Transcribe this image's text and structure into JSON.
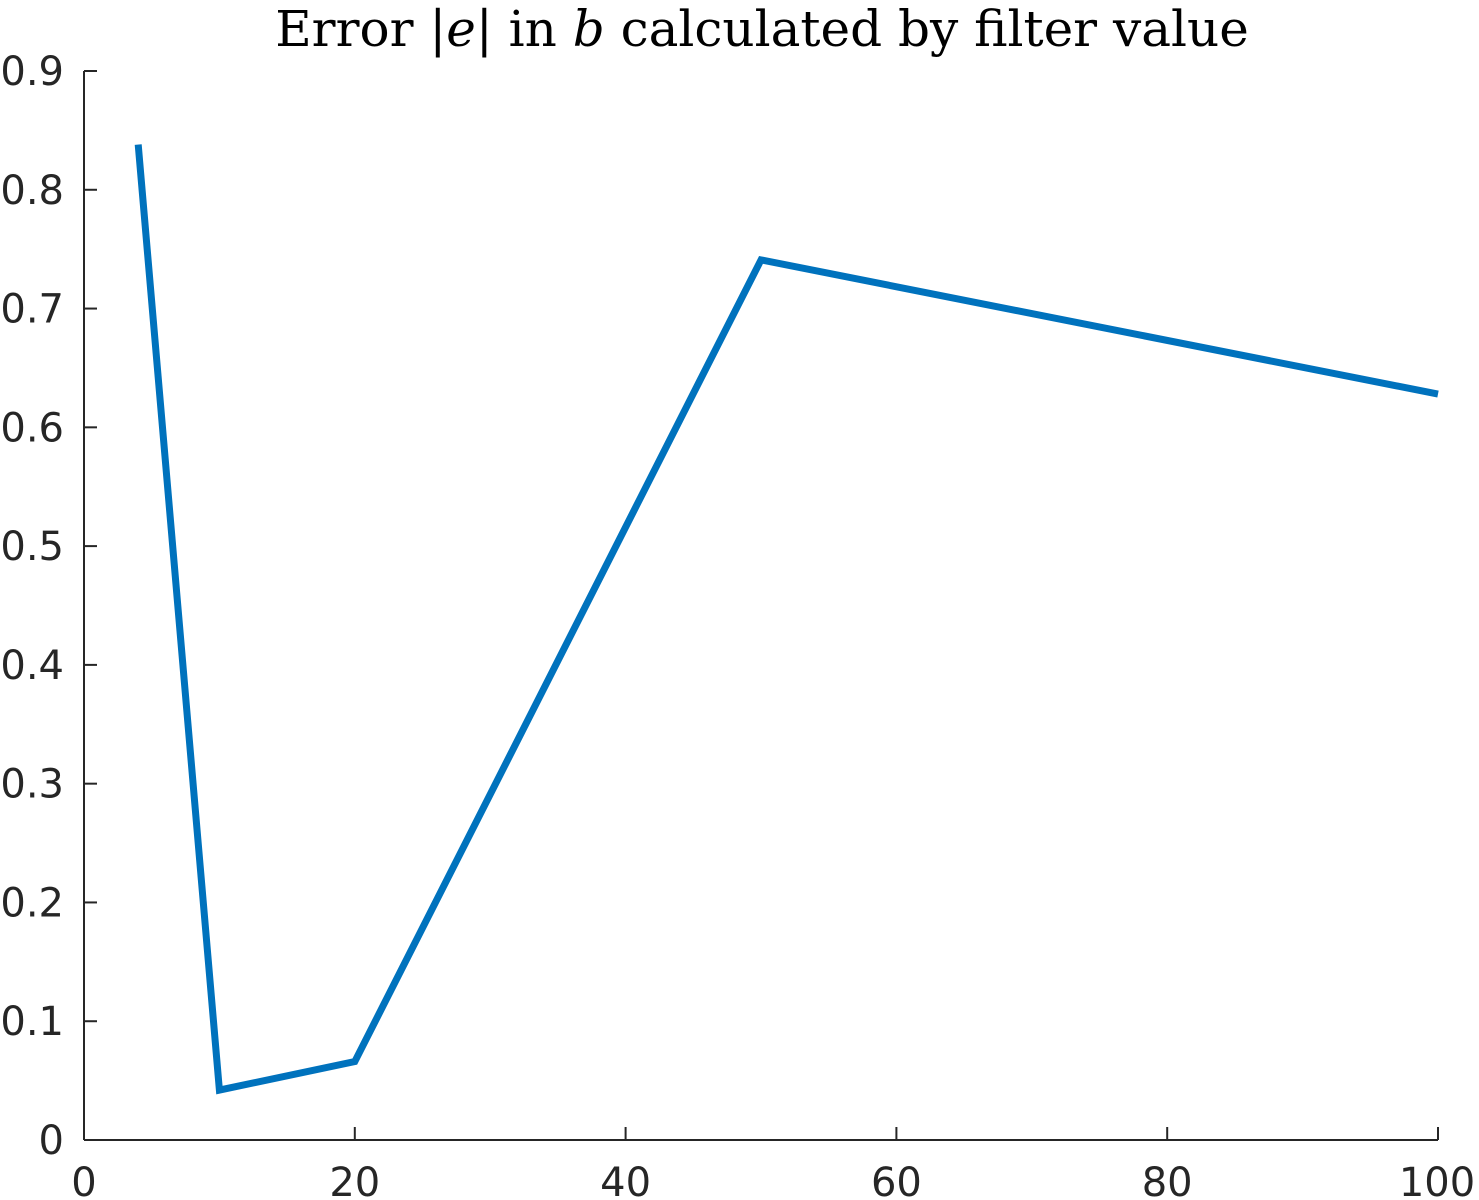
{
  "chart_data": {
    "type": "line",
    "title_parts": [
      {
        "text": "Error ",
        "italic": false
      },
      {
        "text": "|",
        "italic": false
      },
      {
        "text": "e",
        "italic": true
      },
      {
        "text": "|",
        "italic": false
      },
      {
        "text": " in ",
        "italic": false
      },
      {
        "text": "b",
        "italic": true
      },
      {
        "text": " calculated by filter value",
        "italic": false
      }
    ],
    "xlabel": "",
    "ylabel": "",
    "xlim": [
      0,
      100
    ],
    "ylim": [
      0,
      0.9
    ],
    "xticks": [
      0,
      20,
      40,
      60,
      80,
      100
    ],
    "xtick_labels": [
      "0",
      "20",
      "40",
      "60",
      "80",
      "100"
    ],
    "yticks": [
      0,
      0.1,
      0.2,
      0.3,
      0.4,
      0.5,
      0.6,
      0.7,
      0.8,
      0.9
    ],
    "ytick_labels": [
      "0",
      "0.1",
      "0.2",
      "0.3",
      "0.4",
      "0.5",
      "0.6",
      "0.7",
      "0.8",
      "0.9"
    ],
    "grid": false,
    "series": [
      {
        "color": "#0072bd",
        "x": [
          4,
          10,
          20,
          50,
          100
        ],
        "y": [
          0.838,
          0.042,
          0.066,
          0.741,
          0.628
        ]
      }
    ]
  }
}
